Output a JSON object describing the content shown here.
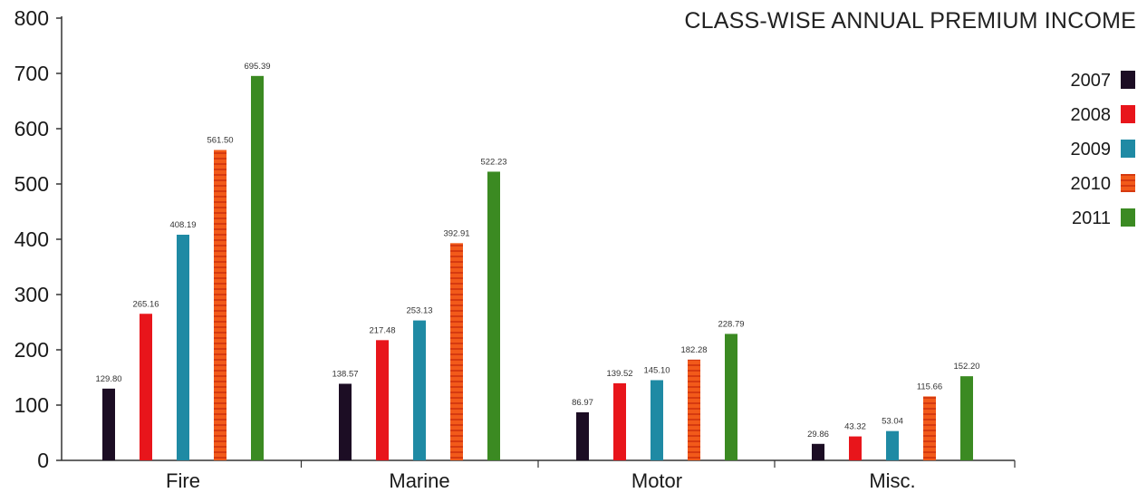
{
  "chart_data": {
    "type": "bar",
    "title": "CLASS-WISE ANNUAL PREMIUM INCOME",
    "xlabel": "",
    "ylabel": "",
    "categories": [
      "Fire",
      "Marine",
      "Motor",
      "Misc."
    ],
    "ylim": [
      0,
      800
    ],
    "yticks": [
      0,
      100,
      200,
      300,
      400,
      500,
      600,
      700,
      800
    ],
    "grid": false,
    "legend_position": "right",
    "series": [
      {
        "name": "2007",
        "color": "#1c0d24",
        "values": [
          129.8,
          138.57,
          86.97,
          29.86
        ],
        "labels": [
          "129.80",
          "138.57",
          "86.97",
          "29.86"
        ]
      },
      {
        "name": "2008",
        "color": "#e8151b",
        "values": [
          265.16,
          217.48,
          139.52,
          43.32
        ],
        "labels": [
          "265.16",
          "217.48",
          "139.52",
          "43.32"
        ]
      },
      {
        "name": "2009",
        "color": "#1f8aa4",
        "values": [
          408.19,
          253.13,
          145.1,
          53.04
        ],
        "labels": [
          "408.19",
          "253.13",
          "145.10",
          "53.04"
        ]
      },
      {
        "name": "2010",
        "color": "#f25a1a",
        "values": [
          561.5,
          392.91,
          182.28,
          115.66
        ],
        "labels": [
          "561.50",
          "392.91",
          "182.28",
          "115.66"
        ]
      },
      {
        "name": "2011",
        "color": "#3b8a22",
        "values": [
          695.39,
          522.23,
          228.79,
          152.2
        ],
        "labels": [
          "695.39",
          "522.23",
          "228.79",
          "152.20"
        ]
      }
    ]
  }
}
